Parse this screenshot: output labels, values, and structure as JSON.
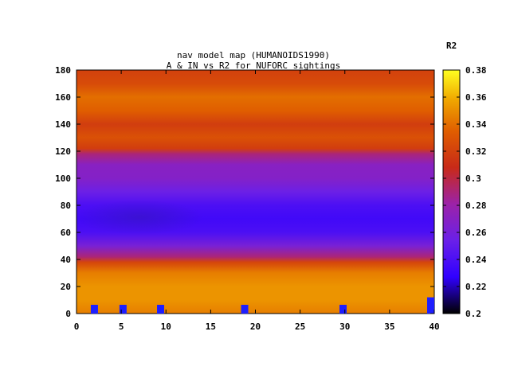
{
  "chart_data": {
    "type": "heatmap",
    "title_line1": "nav model map (HUMANOIDS1990)",
    "title_line2": "A & IN vs R2 for NUFORC sightings",
    "xlim": [
      0,
      40
    ],
    "ylim": [
      0,
      180
    ],
    "x_ticks": [
      0,
      5,
      10,
      15,
      20,
      25,
      30,
      35,
      40
    ],
    "y_ticks": [
      0,
      20,
      40,
      60,
      80,
      100,
      120,
      140,
      160,
      180
    ],
    "colorbar": {
      "label": "R2",
      "range": [
        0.2,
        0.38
      ],
      "ticks": [
        "0.2",
        "0.22",
        "0.24",
        "0.26",
        "0.28",
        "0.3",
        "0.32",
        "0.34",
        "0.36",
        "0.38"
      ],
      "palette": "black-blue-purple-red-orange-yellow"
    },
    "field_bands": [
      {
        "y": 0,
        "r2": 0.345
      },
      {
        "y": 10,
        "r2": 0.352
      },
      {
        "y": 20,
        "r2": 0.352
      },
      {
        "y": 30,
        "r2": 0.345
      },
      {
        "y": 38,
        "r2": 0.322
      },
      {
        "y": 42,
        "r2": 0.29
      },
      {
        "y": 50,
        "r2": 0.262
      },
      {
        "y": 60,
        "r2": 0.24
      },
      {
        "y": 70,
        "r2": 0.235
      },
      {
        "y": 80,
        "r2": 0.24
      },
      {
        "y": 90,
        "r2": 0.255
      },
      {
        "y": 100,
        "r2": 0.268
      },
      {
        "y": 110,
        "r2": 0.27
      },
      {
        "y": 118,
        "r2": 0.29
      },
      {
        "y": 122,
        "r2": 0.318
      },
      {
        "y": 130,
        "r2": 0.328
      },
      {
        "y": 140,
        "r2": 0.318
      },
      {
        "y": 150,
        "r2": 0.335
      },
      {
        "y": 160,
        "r2": 0.34
      },
      {
        "y": 170,
        "r2": 0.325
      },
      {
        "y": 180,
        "r2": 0.32
      }
    ],
    "points": [
      {
        "x": 2,
        "y": 4
      },
      {
        "x": 5.2,
        "y": 4
      },
      {
        "x": 9.4,
        "y": 4.5
      },
      {
        "x": 18.8,
        "y": 3.5
      },
      {
        "x": 29.8,
        "y": 4
      },
      {
        "x": 39.8,
        "y": 12
      }
    ],
    "point_color": "#1e1eff"
  }
}
